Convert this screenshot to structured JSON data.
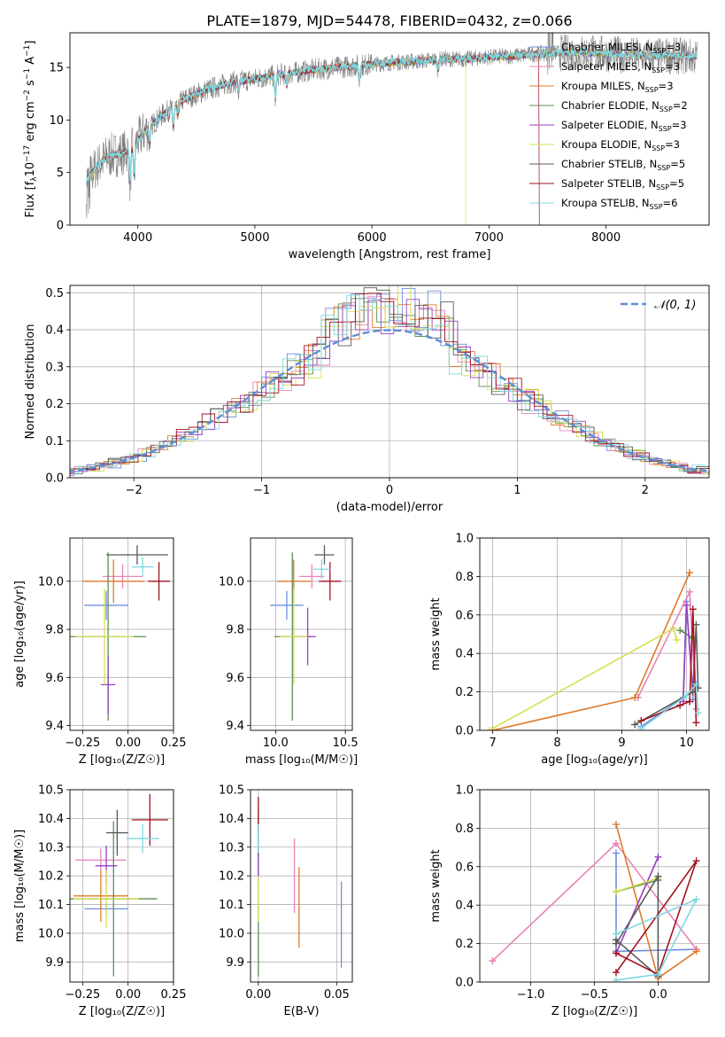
{
  "title": "PLATE=1879, MJD=54478, FIBERID=0432, z=0.066",
  "colors": {
    "spectrum": "#7f7f7f",
    "series": [
      "#6f8fe0",
      "#e882b9",
      "#e07a2a",
      "#5c8f55",
      "#9a3ec2",
      "#d6e052",
      "#5a5a5a",
      "#a3121f",
      "#7fd8e0"
    ],
    "normal": "#5b8fd6",
    "grid": "#b0b0b0"
  },
  "legend": [
    {
      "name": "Chabrier MILES",
      "sub": "SSP",
      "n": "3"
    },
    {
      "name": "Salpeter MILES",
      "sub": "SSP",
      "n": "3"
    },
    {
      "name": "Kroupa MILES",
      "sub": "SSP",
      "n": "3"
    },
    {
      "name": "Chabrier ELODIE",
      "sub": "SSP",
      "n": "2"
    },
    {
      "name": "Salpeter ELODIE",
      "sub": "SSP",
      "n": "3"
    },
    {
      "name": "Kroupa ELODIE",
      "sub": "SSP",
      "n": "3"
    },
    {
      "name": "Chabrier STELIB",
      "sub": "SSP",
      "n": "5"
    },
    {
      "name": "Salpeter STELIB",
      "sub": "SSP",
      "n": "5"
    },
    {
      "name": "Kroupa STELIB",
      "sub": "SSP",
      "n": "6"
    }
  ],
  "chart_data": [
    {
      "id": "spectrum",
      "type": "line",
      "xlabel": "wavelength [Angstrom, rest frame]",
      "ylabel": {
        "pre": "Flux [f",
        "lam": "λ",
        "mid": "10",
        "e1": "−17",
        "mid2": " erg cm",
        "e2": "−2",
        "mid3": " s",
        "e3": "−1",
        "mid4": " A",
        "e4": "−1",
        "post": "]"
      },
      "xlim": [
        3420,
        8880
      ],
      "ylim": [
        0,
        18.3
      ],
      "xticks": [
        4000,
        5000,
        6000,
        7000,
        8000
      ],
      "yticks": [
        0,
        5,
        10,
        15
      ],
      "continuum": [
        [
          3560,
          4.2
        ],
        [
          3650,
          5.6
        ],
        [
          3750,
          6.6
        ],
        [
          3850,
          6.8
        ],
        [
          3950,
          7.3
        ],
        [
          4050,
          8.8
        ],
        [
          4200,
          10.4
        ],
        [
          4400,
          12.0
        ],
        [
          4600,
          12.9
        ],
        [
          4800,
          13.6
        ],
        [
          5000,
          13.9
        ],
        [
          5200,
          14.3
        ],
        [
          5400,
          14.6
        ],
        [
          5600,
          14.9
        ],
        [
          5800,
          15.1
        ],
        [
          6000,
          15.3
        ],
        [
          6200,
          15.5
        ],
        [
          6400,
          15.6
        ],
        [
          6600,
          15.8
        ],
        [
          6800,
          15.8
        ],
        [
          7000,
          16.0
        ],
        [
          7200,
          16.1
        ],
        [
          7400,
          16.3
        ],
        [
          7600,
          16.4
        ],
        [
          7800,
          16.4
        ],
        [
          8000,
          16.3
        ],
        [
          8300,
          16.1
        ],
        [
          8600,
          16.1
        ],
        [
          8800,
          16.0
        ]
      ],
      "drops": [
        [
          6800,
          0
        ],
        [
          7430,
          0
        ]
      ],
      "legend_position": "right"
    },
    {
      "id": "residuals",
      "type": "histogram",
      "xlabel": "(data-model)/error",
      "ylabel": "Normed distribution",
      "xlim": [
        -2.5,
        2.5
      ],
      "ylim": [
        0,
        0.52
      ],
      "xticks": [
        -2,
        -1,
        0,
        1,
        2
      ],
      "xticklabels": [
        "−2",
        "−1",
        "0",
        "1",
        "2"
      ],
      "yticks": [
        0.0,
        0.1,
        0.2,
        0.3,
        0.4,
        0.5
      ],
      "yticklabels": [
        "0.0",
        "0.1",
        "0.2",
        "0.3",
        "0.4",
        "0.5"
      ],
      "bin_width": 0.1,
      "legend": "𝒩(0, 1)",
      "legend_position": "top-right"
    },
    {
      "id": "age-Z",
      "type": "scatter",
      "xlabel": "Z [log₁₀(Z/Z☉)]",
      "ylabel": "age  [log₁₀(age/yr)]",
      "xlim": [
        -0.32,
        0.25
      ],
      "ylim": [
        9.38,
        10.18
      ],
      "xticks": [
        -0.25,
        0.0,
        0.25
      ],
      "xticklabels": [
        "−0.25",
        "0.00",
        "0.25"
      ],
      "yticks": [
        9.4,
        9.6,
        9.8,
        10.0
      ],
      "yticklabels": [
        "9.4",
        "9.6",
        "9.8",
        "10.0"
      ],
      "points": [
        {
          "c": 0,
          "x": -0.12,
          "y": 9.9,
          "xe": 0.12,
          "ye": 0.06
        },
        {
          "c": 1,
          "x": -0.03,
          "y": 10.02,
          "xe": 0.11,
          "ye": 0.05
        },
        {
          "c": 2,
          "x": -0.08,
          "y": 10.0,
          "xe": 0.17,
          "ye": 0.09
        },
        {
          "c": 3,
          "x": -0.11,
          "y": 9.77,
          "xe": 0.21,
          "ye": 0.35
        },
        {
          "c": 4,
          "x": -0.11,
          "y": 9.57,
          "xe": 0.04,
          "ye": 0.12
        },
        {
          "c": 5,
          "x": -0.13,
          "y": 9.77,
          "xe": 0.16,
          "ye": 0.2
        },
        {
          "c": 6,
          "x": 0.05,
          "y": 10.11,
          "xe": 0.17,
          "ye": 0.04
        },
        {
          "c": 7,
          "x": 0.17,
          "y": 10.0,
          "xe": 0.06,
          "ye": 0.08
        },
        {
          "c": 8,
          "x": 0.08,
          "y": 10.06,
          "xe": 0.06,
          "ye": 0.04
        }
      ]
    },
    {
      "id": "age-mass",
      "type": "scatter",
      "xlabel": "mass [log₁₀(M/M☉)]",
      "ylabel": "",
      "xlim": [
        9.82,
        10.55
      ],
      "ylim": [
        9.38,
        10.18
      ],
      "xticks": [
        10.0,
        10.5
      ],
      "xticklabels": [
        "10.0",
        "10.5"
      ],
      "yticks": [
        9.4,
        9.6,
        9.8,
        10.0
      ],
      "yticklabels": [
        "9.4",
        "9.6",
        "9.8",
        "10.0"
      ],
      "points": [
        {
          "c": 0,
          "x": 10.08,
          "y": 9.9,
          "xe": 0.12,
          "ye": 0.06
        },
        {
          "c": 1,
          "x": 10.26,
          "y": 10.02,
          "xe": 0.09,
          "ye": 0.05
        },
        {
          "c": 2,
          "x": 10.13,
          "y": 10.0,
          "xe": 0.12,
          "ye": 0.09
        },
        {
          "c": 3,
          "x": 10.12,
          "y": 9.77,
          "xe": 0.13,
          "ye": 0.35
        },
        {
          "c": 4,
          "x": 10.23,
          "y": 9.77,
          "xe": 0.06,
          "ye": 0.12
        },
        {
          "c": 5,
          "x": 10.13,
          "y": 9.77,
          "xe": 0.1,
          "ye": 0.2
        },
        {
          "c": 6,
          "x": 10.35,
          "y": 10.11,
          "xe": 0.07,
          "ye": 0.04
        },
        {
          "c": 7,
          "x": 10.39,
          "y": 10.0,
          "xe": 0.08,
          "ye": 0.08
        },
        {
          "c": 8,
          "x": 10.33,
          "y": 10.05,
          "xe": 0.06,
          "ye": 0.04
        }
      ]
    },
    {
      "id": "mw-age",
      "type": "line",
      "xlabel": "age  [log₁₀(age/yr)]",
      "ylabel": "mass weight",
      "xlim": [
        6.8,
        10.35
      ],
      "ylim": [
        0,
        1.0
      ],
      "xticks": [
        7,
        8,
        9,
        10
      ],
      "xticklabels": [
        "7",
        "8",
        "9",
        "10"
      ],
      "yticks": [
        0.0,
        0.2,
        0.4,
        0.6,
        0.8,
        1.0
      ],
      "yticklabels": [
        "0.0",
        "0.2",
        "0.4",
        "0.6",
        "0.8",
        "1.0"
      ],
      "series": [
        {
          "c": 0,
          "points": [
            [
              9.3,
              0.02
            ],
            [
              9.95,
              0.17
            ],
            [
              10.0,
              0.67
            ],
            [
              10.1,
              0.16
            ]
          ]
        },
        {
          "c": 1,
          "points": [
            [
              9.25,
              0.17
            ],
            [
              10.05,
              0.72
            ],
            [
              10.15,
              0.11
            ]
          ]
        },
        {
          "c": 2,
          "points": [
            [
              7.0,
              0.0
            ],
            [
              9.2,
              0.17
            ],
            [
              10.05,
              0.82
            ]
          ]
        },
        {
          "c": 3,
          "points": [
            [
              9.9,
              0.52
            ],
            [
              10.1,
              0.48
            ]
          ]
        },
        {
          "c": 4,
          "points": [
            [
              9.95,
              0.15
            ],
            [
              10.0,
              0.65
            ],
            [
              10.1,
              0.2
            ]
          ]
        },
        {
          "c": 5,
          "points": [
            [
              6.95,
              0.0
            ],
            [
              9.8,
              0.53
            ],
            [
              9.85,
              0.47
            ]
          ]
        },
        {
          "c": 6,
          "points": [
            [
              9.2,
              0.03
            ],
            [
              10.1,
              0.2
            ],
            [
              10.15,
              0.55
            ],
            [
              10.18,
              0.22
            ]
          ]
        },
        {
          "c": 7,
          "points": [
            [
              9.3,
              0.05
            ],
            [
              9.9,
              0.13
            ],
            [
              10.05,
              0.15
            ],
            [
              10.1,
              0.63
            ],
            [
              10.15,
              0.04
            ]
          ]
        },
        {
          "c": 8,
          "points": [
            [
              9.3,
              0.01
            ],
            [
              10.0,
              0.18
            ],
            [
              10.15,
              0.24
            ],
            [
              10.18,
              0.09
            ]
          ]
        }
      ]
    },
    {
      "id": "mass-Z",
      "type": "scatter",
      "xlabel": "Z [log₁₀(Z/Z☉)]",
      "ylabel": "mass [log₁₀(M/M☉)]",
      "xlim": [
        -0.32,
        0.25
      ],
      "ylim": [
        9.83,
        10.5
      ],
      "xticks": [
        -0.25,
        0.0,
        0.25
      ],
      "xticklabels": [
        "−0.25",
        "0.00",
        "0.25"
      ],
      "yticks": [
        9.9,
        10.0,
        10.1,
        10.2,
        10.3,
        10.4,
        10.5
      ],
      "yticklabels": [
        "9.9",
        "10.0",
        "10.1",
        "10.2",
        "10.3",
        "10.4",
        "10.5"
      ],
      "points": [
        {
          "c": 0,
          "x": -0.12,
          "y": 10.085,
          "xe": 0.12,
          "ye": 0.02
        },
        {
          "c": 1,
          "x": -0.15,
          "y": 10.255,
          "xe": 0.14,
          "ye": 0.04
        },
        {
          "c": 2,
          "x": -0.15,
          "y": 10.13,
          "xe": 0.15,
          "ye": 0.09
        },
        {
          "c": 3,
          "x": -0.08,
          "y": 10.12,
          "xe": 0.24,
          "ye": 0.27
        },
        {
          "c": 4,
          "x": -0.12,
          "y": 10.235,
          "xe": 0.06,
          "ye": 0.07
        },
        {
          "c": 5,
          "x": -0.12,
          "y": 10.12,
          "xe": 0.18,
          "ye": 0.1
        },
        {
          "c": 6,
          "x": -0.06,
          "y": 10.35,
          "xe": 0.06,
          "ye": 0.08
        },
        {
          "c": 7,
          "x": 0.12,
          "y": 10.395,
          "xe": 0.1,
          "ye": 0.09
        },
        {
          "c": 8,
          "x": 0.08,
          "y": 10.33,
          "xe": 0.09,
          "ye": 0.05
        }
      ]
    },
    {
      "id": "mass-ebv",
      "type": "scatter",
      "xlabel": "E(B-V)",
      "ylabel": "",
      "xlim": [
        -0.005,
        0.06
      ],
      "ylim": [
        9.83,
        10.5
      ],
      "xticks": [
        0.0,
        0.05
      ],
      "xticklabels": [
        "0.00",
        "0.05"
      ],
      "yticks": [
        9.9,
        10.0,
        10.1,
        10.2,
        10.3,
        10.4,
        10.5
      ],
      "yticklabels": [
        "9.9",
        "10.0",
        "10.1",
        "10.2",
        "10.3",
        "10.4",
        "10.5"
      ],
      "points": [
        {
          "c": 0,
          "x": 0.053,
          "y": 10.03,
          "xe": 0,
          "ye": 0.15
        },
        {
          "c": 1,
          "x": 0.023,
          "y": 10.2,
          "xe": 0,
          "ye": 0.13
        },
        {
          "c": 2,
          "x": 0.026,
          "y": 10.09,
          "xe": 0,
          "ye": 0.14
        },
        {
          "c": 3,
          "x": 0.0,
          "y": 10.12,
          "xe": 0,
          "ye": 0.27
        },
        {
          "c": 4,
          "x": 0.0,
          "y": 10.25,
          "xe": 0,
          "ye": 0.07
        },
        {
          "c": 5,
          "x": 0.0,
          "y": 10.12,
          "xe": 0,
          "ye": 0.08
        },
        {
          "c": 6,
          "x": 0.0,
          "y": 10.35,
          "xe": 0,
          "ye": 0.08
        },
        {
          "c": 7,
          "x": 0.0,
          "y": 10.395,
          "xe": 0,
          "ye": 0.08
        },
        {
          "c": 8,
          "x": 0.0,
          "y": 10.33,
          "xe": 0,
          "ye": 0.05
        }
      ]
    },
    {
      "id": "mw-Z",
      "type": "line",
      "xlabel": "Z [log₁₀(Z/Z☉)]",
      "ylabel": "mass weight",
      "xlim": [
        -1.4,
        0.4
      ],
      "ylim": [
        0,
        1.0
      ],
      "xticks": [
        -1.0,
        -0.5,
        0.0
      ],
      "xticklabels": [
        "−1.0",
        "−0.5",
        "0.0"
      ],
      "yticks": [
        0.0,
        0.2,
        0.4,
        0.6,
        0.8,
        1.0
      ],
      "yticklabels": [
        "0.0",
        "0.2",
        "0.4",
        "0.6",
        "0.8",
        "1.0"
      ],
      "series": [
        {
          "c": 0,
          "points": [
            [
              -0.33,
              0.67
            ],
            [
              -0.33,
              0.16
            ],
            [
              0.3,
              0.17
            ]
          ]
        },
        {
          "c": 1,
          "points": [
            [
              -1.3,
              0.11
            ],
            [
              -0.33,
              0.72
            ],
            [
              0.3,
              0.17
            ]
          ]
        },
        {
          "c": 2,
          "points": [
            [
              -0.33,
              0.82
            ],
            [
              0.0,
              0.02
            ],
            [
              0.3,
              0.16
            ]
          ]
        },
        {
          "c": 3,
          "points": [
            [
              -0.33,
              0.47
            ],
            [
              0.0,
              0.53
            ]
          ]
        },
        {
          "c": 4,
          "points": [
            [
              -0.33,
              0.15
            ],
            [
              0.0,
              0.65
            ]
          ]
        },
        {
          "c": 5,
          "points": [
            [
              -0.33,
              0.47
            ],
            [
              0.0,
              0.54
            ]
          ]
        },
        {
          "c": 6,
          "points": [
            [
              -0.33,
              0.2
            ],
            [
              0.0,
              0.55
            ],
            [
              0.0,
              0.03
            ],
            [
              -0.33,
              0.22
            ]
          ]
        },
        {
          "c": 7,
          "points": [
            [
              -0.33,
              0.15
            ],
            [
              0.0,
              0.04
            ],
            [
              0.3,
              0.63
            ],
            [
              -0.33,
              0.05
            ]
          ]
        },
        {
          "c": 8,
          "points": [
            [
              -0.33,
              0.01
            ],
            [
              0.0,
              0.04
            ],
            [
              0.3,
              0.43
            ],
            [
              -0.33,
              0.25
            ]
          ]
        }
      ]
    }
  ]
}
